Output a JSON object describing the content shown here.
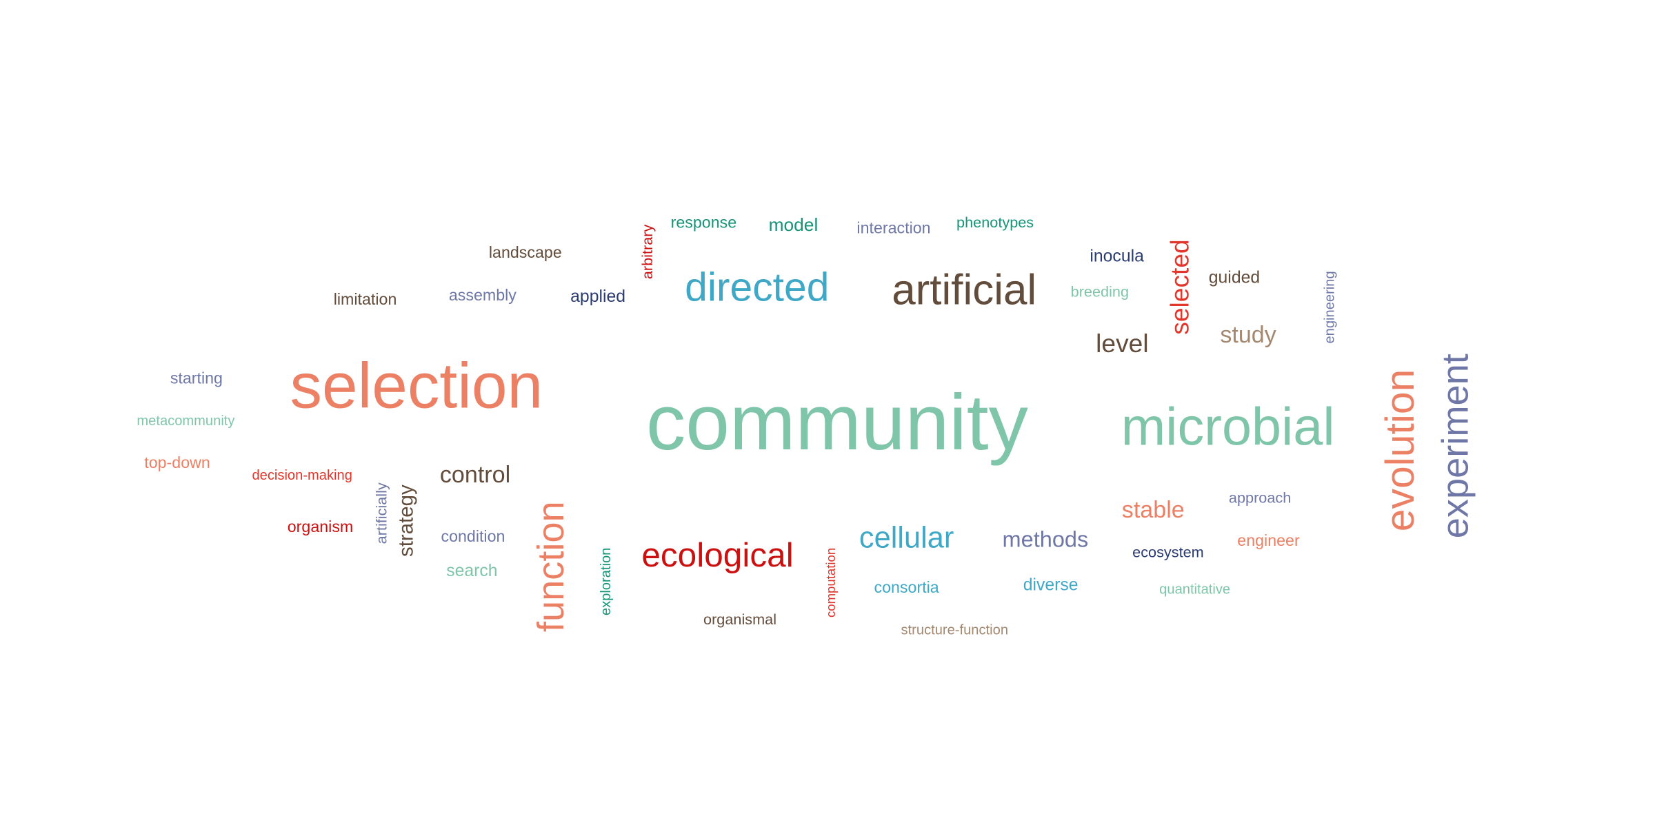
{
  "words": [
    {
      "text": "community",
      "color": "#7fc5aa"
    },
    {
      "text": "selection",
      "color": "#ec8064"
    },
    {
      "text": "microbial",
      "color": "#7fc5aa"
    },
    {
      "text": "artificial",
      "color": "#624c3b"
    },
    {
      "text": "directed",
      "color": "#3fa8c7"
    },
    {
      "text": "ecological",
      "color": "#cc1010"
    },
    {
      "text": "evolution",
      "color": "#ec8064"
    },
    {
      "text": "experiment",
      "color": "#6f77a6"
    },
    {
      "text": "function",
      "color": "#ec8064"
    },
    {
      "text": "cellular",
      "color": "#3fa8c7"
    },
    {
      "text": "methods",
      "color": "#6f77a6"
    },
    {
      "text": "stable",
      "color": "#ec8064"
    },
    {
      "text": "control",
      "color": "#624c3b"
    },
    {
      "text": "level",
      "color": "#624c3b"
    },
    {
      "text": "study",
      "color": "#a48970"
    },
    {
      "text": "selected",
      "color": "#e0362b"
    },
    {
      "text": "strategy",
      "color": "#624c3b"
    },
    {
      "text": "guided",
      "color": "#624c3b"
    },
    {
      "text": "inocula",
      "color": "#2b3c73"
    },
    {
      "text": "breeding",
      "color": "#7fc5aa"
    },
    {
      "text": "engineering",
      "color": "#6f77a6"
    },
    {
      "text": "arbitrary",
      "color": "#cc1010"
    },
    {
      "text": "response",
      "color": "#179478"
    },
    {
      "text": "model",
      "color": "#179478"
    },
    {
      "text": "interaction",
      "color": "#6f77a6"
    },
    {
      "text": "phenotypes",
      "color": "#179478"
    },
    {
      "text": "landscape",
      "color": "#624c3b"
    },
    {
      "text": "limitation",
      "color": "#624c3b"
    },
    {
      "text": "assembly",
      "color": "#6f77a6"
    },
    {
      "text": "applied",
      "color": "#2b3c73"
    },
    {
      "text": "starting",
      "color": "#6f77a6"
    },
    {
      "text": "metacommunity",
      "color": "#7fc5aa"
    },
    {
      "text": "top-down",
      "color": "#ec8064"
    },
    {
      "text": "decision-making",
      "color": "#e0362b"
    },
    {
      "text": "artificially",
      "color": "#6f77a6"
    },
    {
      "text": "organism",
      "color": "#cc1010"
    },
    {
      "text": "condition",
      "color": "#6f77a6"
    },
    {
      "text": "search",
      "color": "#7fc5aa"
    },
    {
      "text": "exploration",
      "color": "#179478"
    },
    {
      "text": "organismal",
      "color": "#624c3b"
    },
    {
      "text": "computation",
      "color": "#e0362b"
    },
    {
      "text": "consortia",
      "color": "#3fa8c7"
    },
    {
      "text": "structure-function",
      "color": "#a48970"
    },
    {
      "text": "diverse",
      "color": "#3fa8c7"
    },
    {
      "text": "approach",
      "color": "#6f77a6"
    },
    {
      "text": "ecosystem",
      "color": "#2b3c73"
    },
    {
      "text": "engineer",
      "color": "#ec8064"
    },
    {
      "text": "quantitative",
      "color": "#7fc5aa"
    }
  ]
}
